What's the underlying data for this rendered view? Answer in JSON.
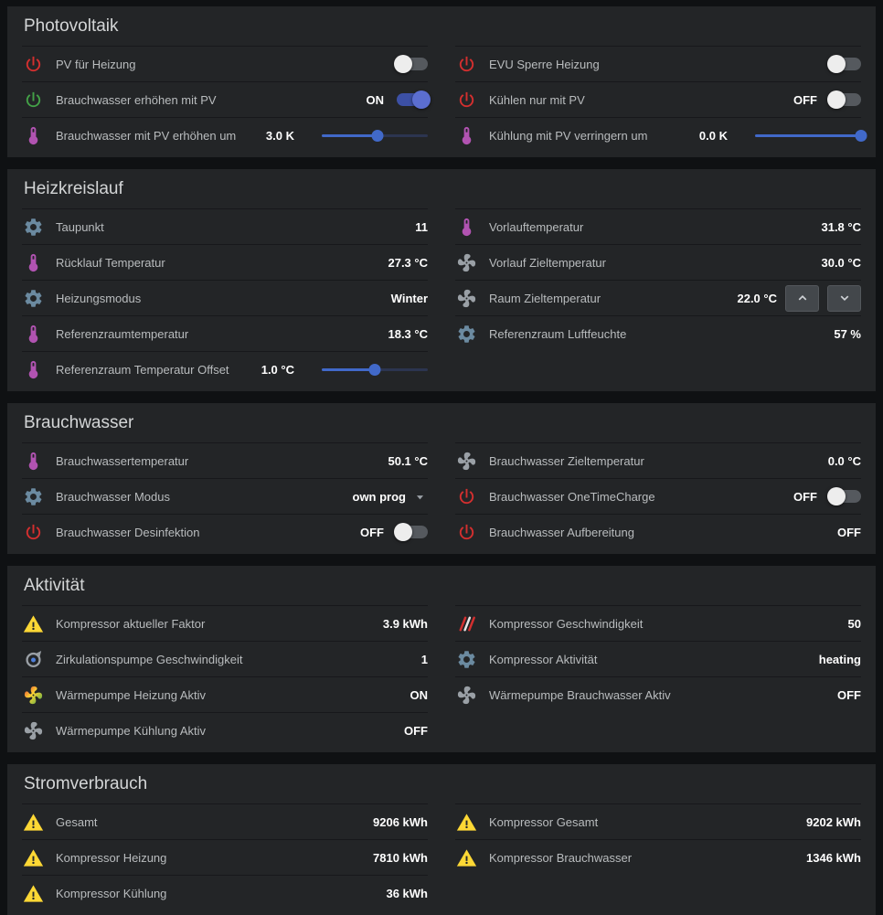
{
  "colors": {
    "page_bg": "#0f1113",
    "card_bg": "#232527",
    "accent_blue": "#4169c9",
    "toggle_on_blue": "#3c50a5",
    "power_red": "#d32f2f",
    "power_green": "#43a047",
    "gear_blue_gray": "#6b8aa0",
    "thermometer_purple": "#b153b1",
    "warning_yellow": "#fdd835"
  },
  "sections": [
    {
      "title": "Photovoltaik",
      "columns": [
        [
          {
            "icon": "power-icon",
            "icon_color": "#d32f2f",
            "label": "PV für Heizung",
            "value": "",
            "control": {
              "type": "toggle",
              "state": "off"
            }
          },
          {
            "icon": "power-icon",
            "icon_color": "#43a047",
            "label": "Brauchwasser erhöhen mit PV",
            "value": "ON",
            "control": {
              "type": "toggle",
              "state": "on"
            }
          },
          {
            "icon": "thermometer-icon",
            "icon_color": "#b153b1",
            "label": "Brauchwasser mit PV erhöhen um",
            "value": "3.0 K",
            "control": {
              "type": "slider",
              "percent": 53
            }
          }
        ],
        [
          {
            "icon": "power-icon",
            "icon_color": "#d32f2f",
            "label": "EVU Sperre Heizung",
            "value": "",
            "control": {
              "type": "toggle",
              "state": "off"
            }
          },
          {
            "icon": "power-icon",
            "icon_color": "#d32f2f",
            "label": "Kühlen nur mit PV",
            "value": "OFF",
            "control": {
              "type": "toggle",
              "state": "off"
            }
          },
          {
            "icon": "thermometer-icon",
            "icon_color": "#b153b1",
            "label": "Kühlung mit PV verringern um",
            "value": "0.0 K",
            "control": {
              "type": "slider",
              "percent": 100
            }
          }
        ]
      ]
    },
    {
      "title": "Heizkreislauf",
      "columns": [
        [
          {
            "icon": "gear-icon",
            "icon_color": "#6b8aa0",
            "label": "Taupunkt",
            "value": "11"
          },
          {
            "icon": "thermometer-icon",
            "icon_color": "#b153b1",
            "label": "Rücklauf Temperatur",
            "value": "27.3 °C"
          },
          {
            "icon": "gear-icon",
            "icon_color": "#6b8aa0",
            "label": "Heizungsmodus",
            "value": "Winter"
          },
          {
            "icon": "thermometer-icon",
            "icon_color": "#b153b1",
            "label": "Referenzraumtemperatur",
            "value": "18.3 °C"
          },
          {
            "icon": "thermometer-icon",
            "icon_color": "#b153b1",
            "label": "Referenzraum Temperatur Offset",
            "value": "1.0 °C",
            "control": {
              "type": "slider",
              "percent": 50
            }
          }
        ],
        [
          {
            "icon": "thermometer-icon",
            "icon_color": "#b153b1",
            "label": "Vorlauftemperatur",
            "value": "31.8 °C"
          },
          {
            "icon": "fan-icon",
            "icon_color": "#9aa0a6",
            "label": "Vorlauf Zieltemperatur",
            "value": "30.0 °C"
          },
          {
            "icon": "fan-icon",
            "icon_color": "#9aa0a6",
            "label": "Raum Zieltemperatur",
            "value": "22.0 °C",
            "control": {
              "type": "stepper"
            }
          },
          {
            "icon": "gear-icon",
            "icon_color": "#6b8aa0",
            "label": "Referenzraum Luftfeuchte",
            "value": "57 %"
          }
        ]
      ]
    },
    {
      "title": "Brauchwasser",
      "columns": [
        [
          {
            "icon": "thermometer-icon",
            "icon_color": "#b153b1",
            "label": "Brauchwassertemperatur",
            "value": "50.1 °C"
          },
          {
            "icon": "gear-icon",
            "icon_color": "#6b8aa0",
            "label": "Brauchwasser Modus",
            "value": "own prog",
            "control": {
              "type": "dropdown"
            }
          },
          {
            "icon": "power-icon",
            "icon_color": "#d32f2f",
            "label": "Brauchwasser Desinfektion",
            "value": "OFF",
            "control": {
              "type": "toggle",
              "state": "off"
            }
          }
        ],
        [
          {
            "icon": "fan-icon",
            "icon_color": "#9aa0a6",
            "label": "Brauchwasser Zieltemperatur",
            "value": "0.0 °C"
          },
          {
            "icon": "power-icon",
            "icon_color": "#d32f2f",
            "label": "Brauchwasser OneTimeCharge",
            "value": "OFF",
            "control": {
              "type": "toggle",
              "state": "off"
            }
          },
          {
            "icon": "power-icon",
            "icon_color": "#d32f2f",
            "label": "Brauchwasser Aufbereitung",
            "value": "OFF"
          }
        ]
      ]
    },
    {
      "title": "Aktivität",
      "columns": [
        [
          {
            "icon": "warning-icon",
            "icon_color": "#fdd835",
            "label": "Kompressor aktueller Faktor",
            "value": "3.9 kWh"
          },
          {
            "icon": "pump-icon",
            "icon_color": "#9aa0a6",
            "label": "Zirkulationspumpe Geschwindigkeit",
            "value": "1"
          },
          {
            "icon": "fan-color-icon",
            "icon_color": "#e53935",
            "label": "Wärmepumpe Heizung Aktiv",
            "value": "ON"
          },
          {
            "icon": "fan-icon",
            "icon_color": "#9aa0a6",
            "label": "Wärmepumpe Kühlung Aktiv",
            "value": "OFF"
          }
        ],
        [
          {
            "icon": "speed-stripes-icon",
            "icon_color": "#d32f2f",
            "label": "Kompressor Geschwindigkeit",
            "value": "50"
          },
          {
            "icon": "gear-icon",
            "icon_color": "#6b8aa0",
            "label": "Kompressor Aktivität",
            "value": "heating"
          },
          {
            "icon": "fan-icon",
            "icon_color": "#9aa0a6",
            "label": "Wärmepumpe Brauchwasser Aktiv",
            "value": "OFF"
          }
        ]
      ]
    },
    {
      "title": "Stromverbrauch",
      "columns": [
        [
          {
            "icon": "warning-icon",
            "icon_color": "#fdd835",
            "label": "Gesamt",
            "value": "9206 kWh"
          },
          {
            "icon": "warning-icon",
            "icon_color": "#fdd835",
            "label": "Kompressor Heizung",
            "value": "7810 kWh"
          },
          {
            "icon": "warning-icon",
            "icon_color": "#fdd835",
            "label": "Kompressor Kühlung",
            "value": "36 kWh"
          }
        ],
        [
          {
            "icon": "warning-icon",
            "icon_color": "#fdd835",
            "label": "Kompressor Gesamt",
            "value": "9202 kWh"
          },
          {
            "icon": "warning-icon",
            "icon_color": "#fdd835",
            "label": "Kompressor Brauchwasser",
            "value": "1346 kWh"
          }
        ]
      ]
    }
  ]
}
